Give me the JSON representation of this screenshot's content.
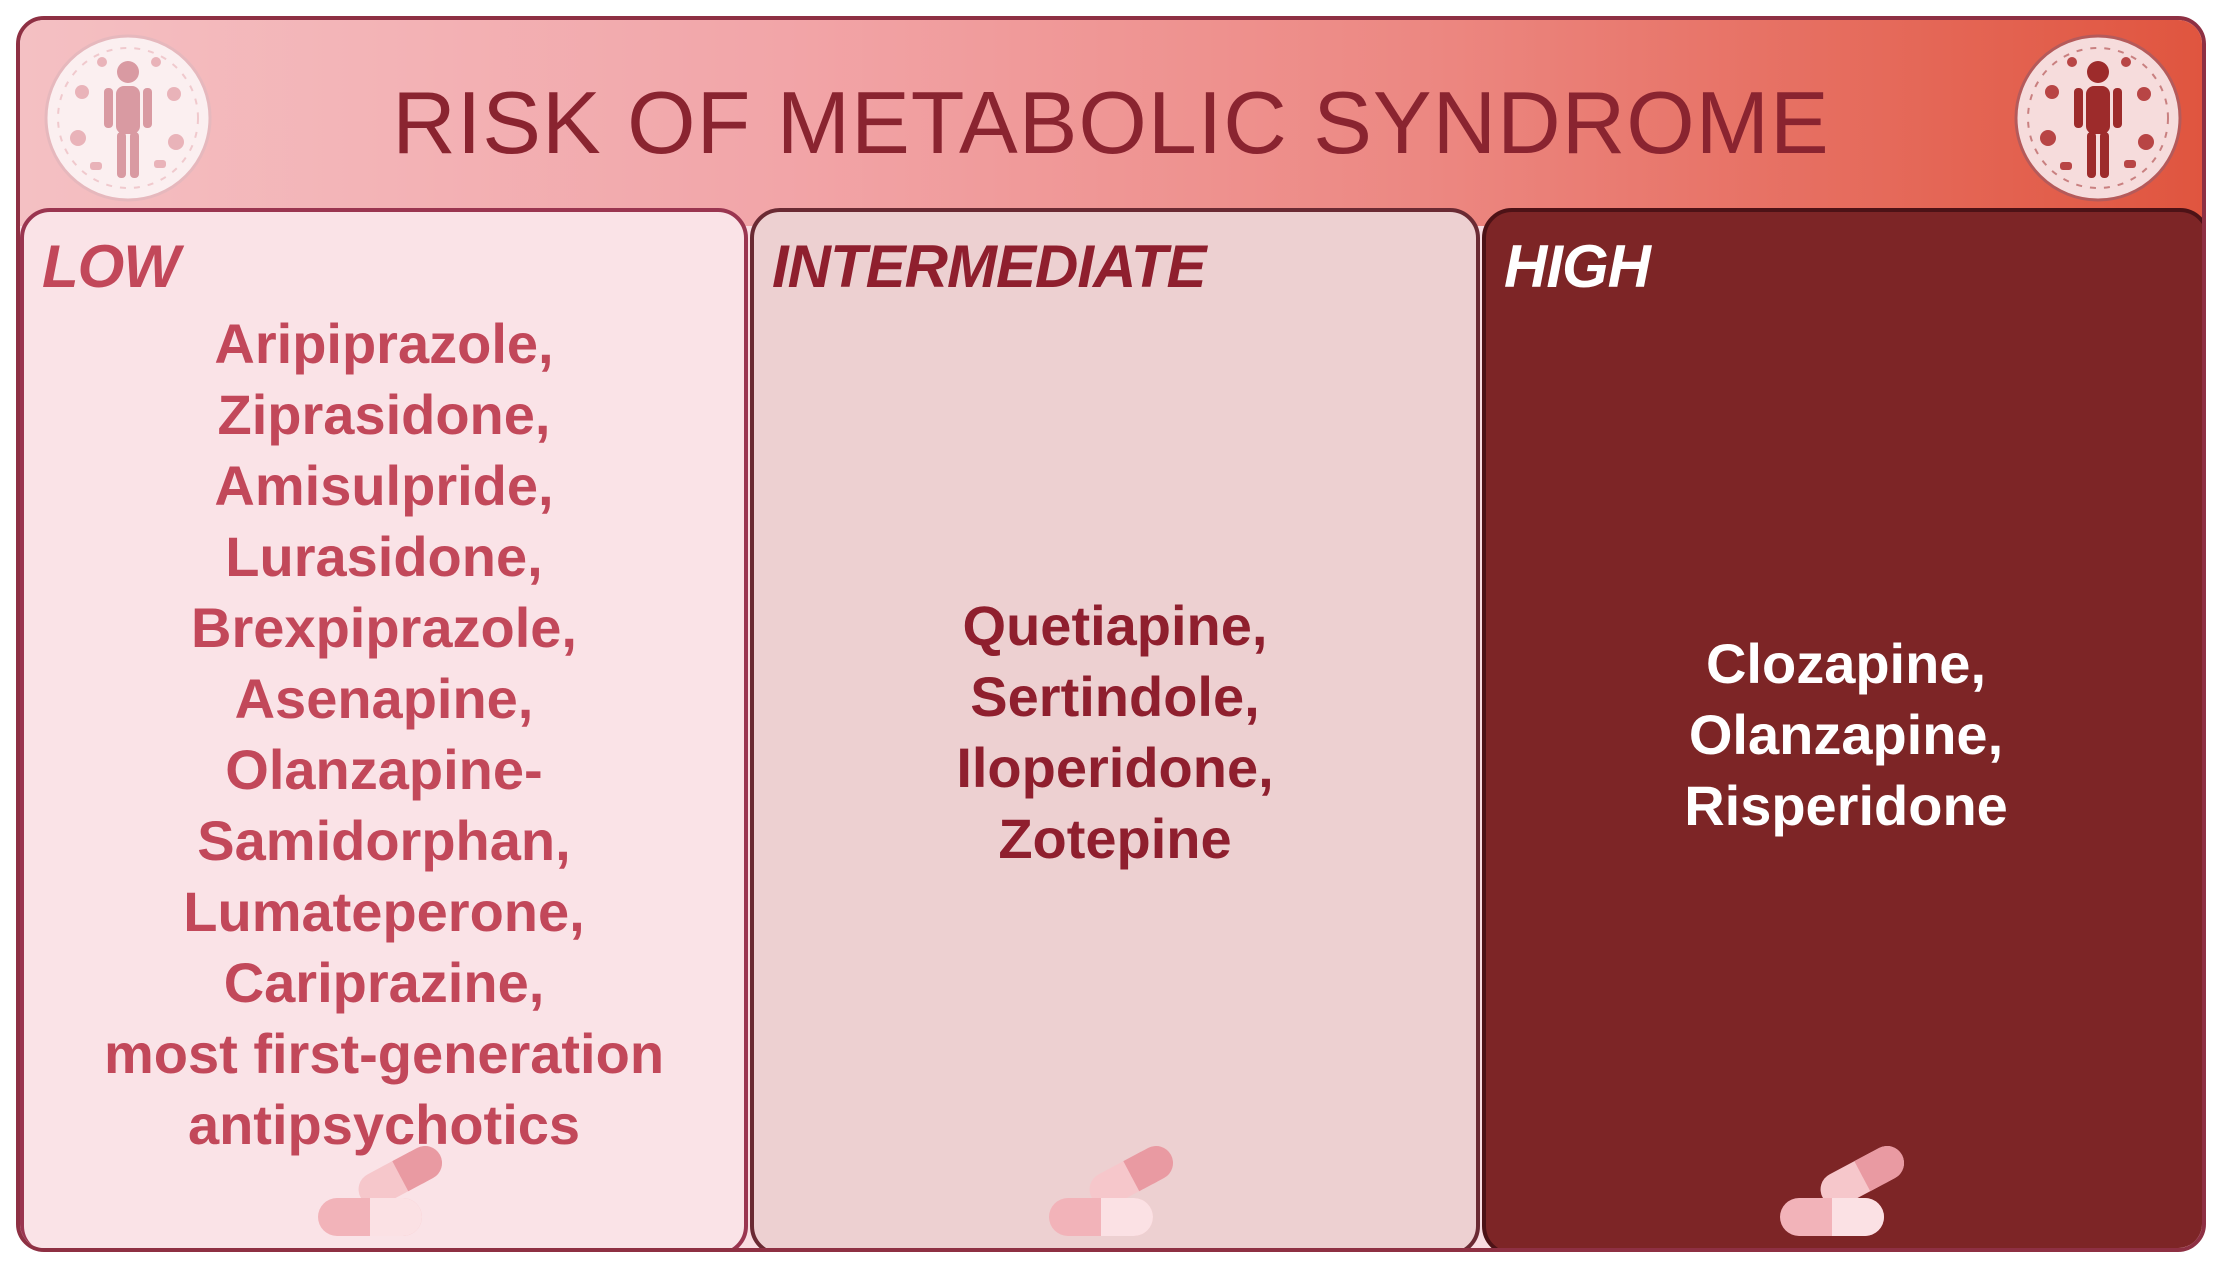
{
  "title": "RISK OF METABOLIC SYNDROME",
  "colors": {
    "frame_border": "#8e3043",
    "title_text": "#8a2430",
    "low_bg": "#fae3e7",
    "low_text": "#c2485a",
    "intermediate_bg": "#edd0d1",
    "intermediate_text": "#8f1f2e",
    "high_bg": "#7d2526",
    "high_text": "#ffffff"
  },
  "icons": {
    "header_left": "human-body-emblem-icon",
    "header_right": "human-body-emblem-icon",
    "panel_footer": "capsule-pills-icon"
  },
  "panels": [
    {
      "label": "LOW",
      "lines": [
        "Aripiprazole,",
        "Ziprasidone,",
        "Amisulpride,",
        "Lurasidone,",
        "Brexpiprazole,",
        "Asenapine,",
        "Olanzapine-",
        "Samidorphan,",
        "Lumateperone,",
        "Cariprazine,",
        "most first-generation",
        "antipsychotics"
      ]
    },
    {
      "label": "INTERMEDIATE",
      "lines": [
        "Quetiapine,",
        "Sertindole,",
        "Iloperidone,",
        "Zotepine"
      ]
    },
    {
      "label": "HIGH",
      "lines": [
        "Clozapine,",
        "Olanzapine,",
        "Risperidone"
      ]
    }
  ]
}
